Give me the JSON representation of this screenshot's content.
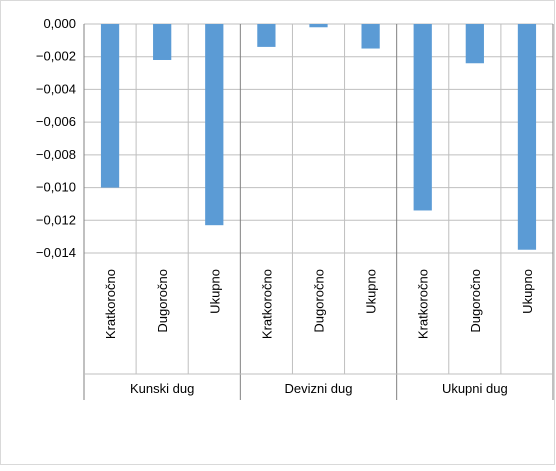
{
  "chart_data": {
    "type": "bar",
    "title": "",
    "xlabel": "",
    "ylabel": "",
    "ylim": [
      -0.014,
      0.0
    ],
    "yticks": [
      "0,000",
      "−0,002",
      "−0,004",
      "−0,006",
      "−0,008",
      "−0,010",
      "−0,012",
      "−0,014"
    ],
    "grid": true,
    "legend": "none",
    "groups": [
      {
        "label": "Kunski dug",
        "categories": [
          "Kratkoročno",
          "Dugoročno",
          "Ukupno"
        ],
        "values": [
          -0.01,
          -0.0022,
          -0.0123
        ]
      },
      {
        "label": "Devizni dug",
        "categories": [
          "Kratkoročno",
          "Dugoročno",
          "Ukupno"
        ],
        "values": [
          -0.0014,
          -0.0002,
          -0.0015
        ]
      },
      {
        "label": "Ukupni dug",
        "categories": [
          "Kratkoročno",
          "Dugoročno",
          "Ukupno"
        ],
        "values": [
          -0.0114,
          -0.0024,
          -0.0138
        ]
      }
    ],
    "colors": {
      "bar": "#5B9BD5",
      "grid": "#bfbfbf",
      "axis": "#808080"
    }
  }
}
